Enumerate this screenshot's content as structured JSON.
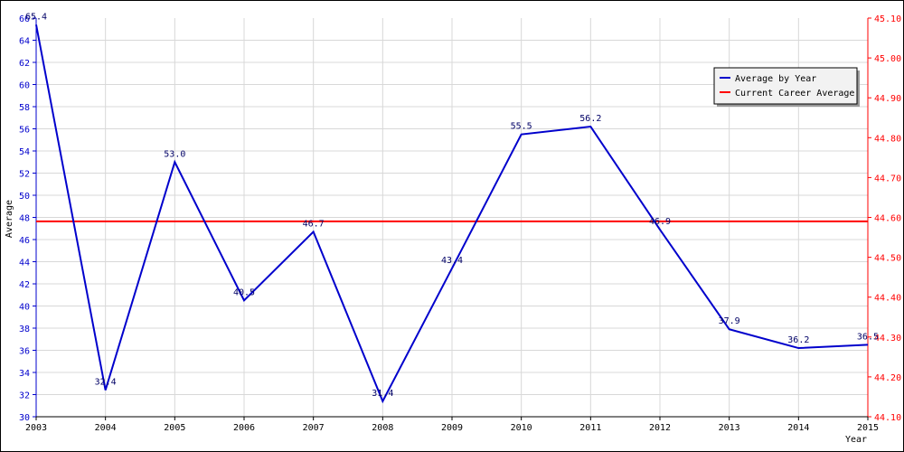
{
  "chart_data": {
    "type": "line",
    "x": [
      "2003",
      "2004",
      "2005",
      "2006",
      "2007",
      "2008",
      "2009",
      "2010",
      "2011",
      "2012",
      "2013",
      "2014",
      "2015"
    ],
    "series": [
      {
        "name": "Average by Year",
        "color": "#0000cc",
        "axis": "left",
        "values": [
          65.4,
          32.4,
          53.0,
          40.5,
          46.7,
          31.4,
          43.4,
          55.5,
          56.2,
          46.9,
          37.9,
          36.2,
          36.5
        ],
        "labels": [
          "65.4",
          "32.4",
          "53.0",
          "40.5",
          "46.7",
          "31.4",
          "43.4",
          "55.5",
          "56.2",
          "46.9",
          "37.9",
          "36.2",
          "36.5"
        ]
      },
      {
        "name": "Current Career Average",
        "color": "#ff0000",
        "axis": "right",
        "value": 44.59
      }
    ],
    "xlabel": "Year",
    "ylabel": "Average",
    "ylim": [
      30,
      66
    ],
    "yticks": [
      "30",
      "32",
      "34",
      "36",
      "38",
      "40",
      "42",
      "44",
      "46",
      "48",
      "50",
      "52",
      "54",
      "56",
      "58",
      "60",
      "62",
      "64",
      "66"
    ],
    "y2lim": [
      44.1,
      45.1
    ],
    "y2ticks": [
      "44.10",
      "44.20",
      "44.30",
      "44.40",
      "44.50",
      "44.60",
      "44.70",
      "44.80",
      "44.90",
      "45.00",
      "45.10"
    ],
    "grid": true,
    "legend_position": "top-right"
  }
}
